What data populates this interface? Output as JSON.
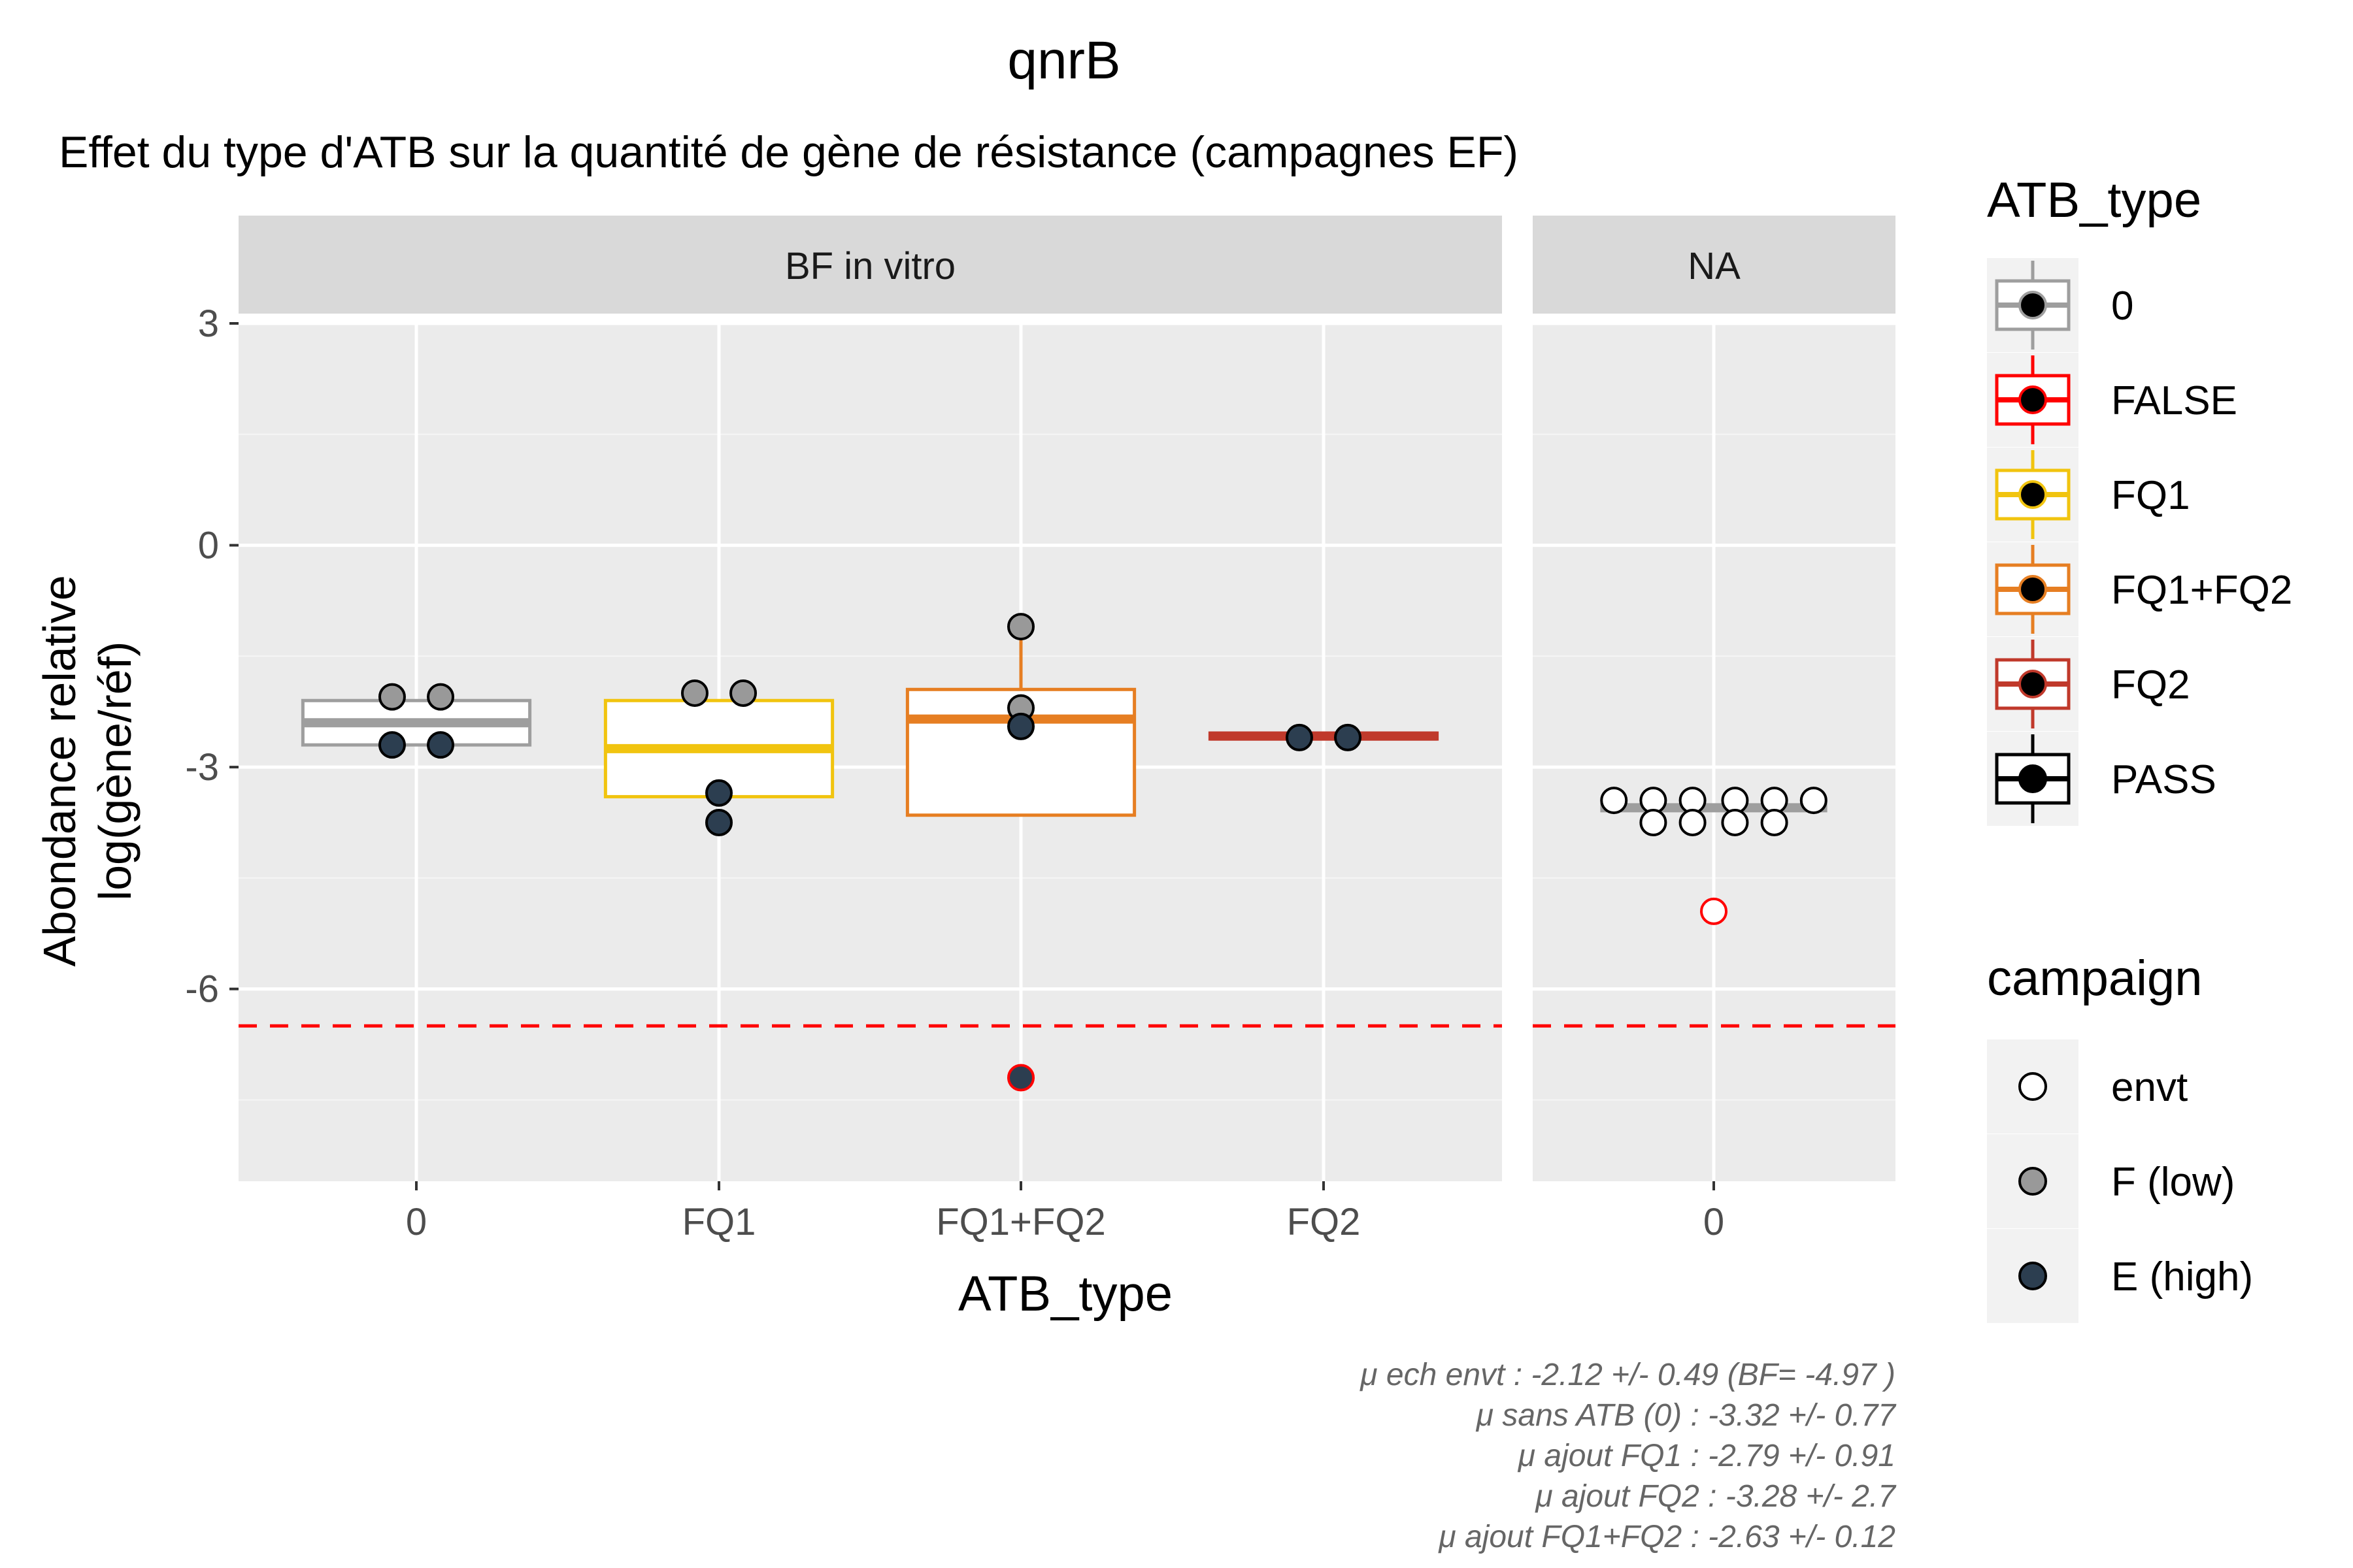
{
  "chart_data": {
    "type": "box",
    "title": "qnrB",
    "subtitle": "Effet du type d'ATB sur la quantité de gène de résistance (campagnes EF)",
    "xlabel": "ATB_type",
    "ylabel_line1": "Abondance relative",
    "ylabel_line2": "log(gène/réf)",
    "ylim": [
      -8.6,
      3.0
    ],
    "yticks": [
      3,
      0,
      -3,
      -6
    ],
    "ytick_labels": [
      "3",
      "0",
      "-3",
      "-6"
    ],
    "threshold": {
      "value": -6.5,
      "color": "#ff0000",
      "style": "dashed"
    },
    "panels": [
      {
        "strip": "BF in vitro",
        "categories": [
          "0",
          "FQ1",
          "FQ1+FQ2",
          "FQ2"
        ],
        "boxes": [
          {
            "category": "0",
            "q1": -2.7,
            "median": -2.4,
            "q3": -2.1,
            "whisker_low": -2.7,
            "whisker_high": -2.1,
            "color": "#9e9e9e"
          },
          {
            "category": "FQ1",
            "q1": -3.4,
            "median": -2.75,
            "q3": -2.1,
            "whisker_low": -3.4,
            "whisker_high": -2.1,
            "color": "#f1c40f"
          },
          {
            "category": "FQ1+FQ2",
            "q1": -3.65,
            "median": -2.35,
            "q3": -1.95,
            "whisker_low": -3.65,
            "whisker_high": -1.15,
            "color": "#e67e22"
          },
          {
            "category": "FQ2",
            "q1": -2.62,
            "median": -2.58,
            "q3": -2.54,
            "whisker_low": -2.62,
            "whisker_high": -2.54,
            "color": "#c0392b"
          }
        ],
        "points": [
          {
            "category": "0",
            "y": -2.05,
            "offset": -0.08,
            "campaign": "F (low)",
            "flag": "PASS"
          },
          {
            "category": "0",
            "y": -2.05,
            "offset": 0.08,
            "campaign": "F (low)",
            "flag": "PASS"
          },
          {
            "category": "0",
            "y": -2.7,
            "offset": -0.08,
            "campaign": "E (high)",
            "flag": "PASS"
          },
          {
            "category": "0",
            "y": -2.7,
            "offset": 0.08,
            "campaign": "E (high)",
            "flag": "PASS"
          },
          {
            "category": "FQ1",
            "y": -2.0,
            "offset": -0.08,
            "campaign": "F (low)",
            "flag": "PASS"
          },
          {
            "category": "FQ1",
            "y": -2.0,
            "offset": 0.08,
            "campaign": "F (low)",
            "flag": "PASS"
          },
          {
            "category": "FQ1",
            "y": -3.35,
            "offset": 0.0,
            "campaign": "E (high)",
            "flag": "PASS"
          },
          {
            "category": "FQ1",
            "y": -3.75,
            "offset": 0.0,
            "campaign": "E (high)",
            "flag": "PASS"
          },
          {
            "category": "FQ1+FQ2",
            "y": -1.1,
            "offset": 0.0,
            "campaign": "F (low)",
            "flag": "PASS"
          },
          {
            "category": "FQ1+FQ2",
            "y": -2.2,
            "offset": 0.0,
            "campaign": "F (low)",
            "flag": "PASS"
          },
          {
            "category": "FQ1+FQ2",
            "y": -2.45,
            "offset": 0.0,
            "campaign": "E (high)",
            "flag": "PASS"
          },
          {
            "category": "FQ1+FQ2",
            "y": -7.2,
            "offset": 0.0,
            "campaign": "E (high)",
            "flag": "FALSE"
          },
          {
            "category": "FQ2",
            "y": -2.6,
            "offset": -0.08,
            "campaign": "E (high)",
            "flag": "PASS"
          },
          {
            "category": "FQ2",
            "y": -2.6,
            "offset": 0.08,
            "campaign": "E (high)",
            "flag": "PASS"
          }
        ]
      },
      {
        "strip": "NA",
        "categories": [
          "0"
        ],
        "boxes": [
          {
            "category": "0",
            "q1": -3.55,
            "median": -3.55,
            "q3": -3.55,
            "whisker_low": -3.55,
            "whisker_high": -3.55,
            "color": "#9e9e9e"
          }
        ],
        "points": [
          {
            "category": "0",
            "y": -3.45,
            "offset": -0.33,
            "campaign": "envt",
            "flag": "PASS"
          },
          {
            "category": "0",
            "y": -3.45,
            "offset": -0.2,
            "campaign": "envt",
            "flag": "PASS"
          },
          {
            "category": "0",
            "y": -3.45,
            "offset": -0.07,
            "campaign": "envt",
            "flag": "PASS"
          },
          {
            "category": "0",
            "y": -3.45,
            "offset": 0.07,
            "campaign": "envt",
            "flag": "PASS"
          },
          {
            "category": "0",
            "y": -3.45,
            "offset": 0.2,
            "campaign": "envt",
            "flag": "PASS"
          },
          {
            "category": "0",
            "y": -3.45,
            "offset": 0.33,
            "campaign": "envt",
            "flag": "PASS"
          },
          {
            "category": "0",
            "y": -3.75,
            "offset": -0.2,
            "campaign": "envt",
            "flag": "PASS"
          },
          {
            "category": "0",
            "y": -3.75,
            "offset": -0.07,
            "campaign": "envt",
            "flag": "PASS"
          },
          {
            "category": "0",
            "y": -3.75,
            "offset": 0.07,
            "campaign": "envt",
            "flag": "PASS"
          },
          {
            "category": "0",
            "y": -3.75,
            "offset": 0.2,
            "campaign": "envt",
            "flag": "PASS"
          },
          {
            "category": "0",
            "y": -4.95,
            "offset": 0.0,
            "campaign": "envt",
            "flag": "FALSE"
          }
        ]
      }
    ],
    "legend_atb": {
      "title": "ATB_type",
      "position": "right",
      "items": [
        {
          "label": "0",
          "color": "#9e9e9e"
        },
        {
          "label": "FALSE",
          "color": "#ff0000"
        },
        {
          "label": "FQ1",
          "color": "#f1c40f"
        },
        {
          "label": "FQ1+FQ2",
          "color": "#e67e22"
        },
        {
          "label": "FQ2",
          "color": "#c0392b"
        },
        {
          "label": "PASS",
          "color": "#000000"
        }
      ]
    },
    "legend_campaign": {
      "title": "campaign",
      "position": "right",
      "items": [
        {
          "label": "envt",
          "fill": "#ffffff"
        },
        {
          "label": "F (low)",
          "fill": "#999999"
        },
        {
          "label": "E (high)",
          "fill": "#2c3e50"
        }
      ]
    },
    "caption_lines": [
      "μ ech envt :  -2.12 +/- 0.49  (BF= -4.97 )",
      "μ sans ATB (0) :  -3.32 +/- 0.77",
      "μ ajout FQ1 :  -2.79 +/- 0.91",
      "μ ajout FQ2 :  -3.28 +/- 2.7",
      "μ ajout FQ1+FQ2 :  -2.63 +/- 0.12"
    ]
  }
}
